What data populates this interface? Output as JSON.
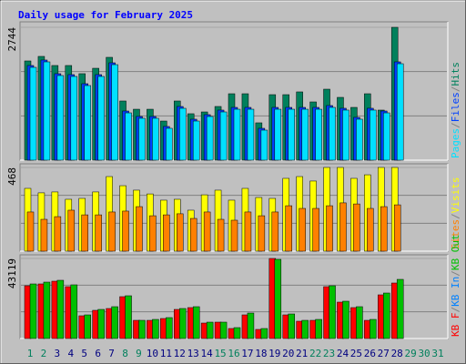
{
  "chart_data": [
    {
      "type": "bar",
      "title": "Daily usage for February 2025",
      "ylim": [
        0,
        2744
      ],
      "yticks": [
        2744
      ],
      "grid_divisions": 3,
      "draw_reverse": true,
      "legend_separator": "/",
      "series": [
        {
          "name": "Pages",
          "color": "#00e0ff",
          "values": [
            1917,
            2030,
            1748,
            1729,
            1541,
            1729,
            1973,
            977,
            865,
            865,
            658,
            1071,
            808,
            902,
            996,
            1052,
            1052,
            620,
            1052,
            1052,
            1052,
            1052,
            1090,
            1034,
            846,
            1034,
            977,
            1992,
            null,
            null,
            null
          ]
        },
        {
          "name": "Files",
          "color": "#0040ff",
          "values": [
            1955,
            2068,
            1786,
            1767,
            1579,
            1767,
            2011,
            1015,
            903,
            903,
            696,
            1109,
            846,
            940,
            1034,
            1090,
            1090,
            658,
            1090,
            1090,
            1090,
            1090,
            1128,
            1072,
            884,
            1072,
            1015,
            2030,
            null,
            null,
            null
          ]
        },
        {
          "name": "Hits",
          "color": "#00805c",
          "values": [
            2049,
            2143,
            1955,
            1955,
            1786,
            1898,
            2124,
            1222,
            1052,
            1052,
            808,
            1222,
            959,
            996,
            1109,
            1372,
            1372,
            771,
            1353,
            1353,
            1410,
            1203,
            1466,
            1297,
            1090,
            1372,
            1034,
            2744,
            null,
            null,
            null
          ]
        }
      ]
    },
    {
      "type": "bar",
      "ylim": [
        0,
        468
      ],
      "yticks": [
        468
      ],
      "grid_divisions": 3,
      "draw_reverse": true,
      "legend_separator": "/",
      "series": [
        {
          "name": "Sites",
          "color": "#ff8000",
          "values": [
            219,
            178,
            193,
            229,
            203,
            203,
            219,
            224,
            249,
            198,
            203,
            209,
            183,
            219,
            178,
            173,
            219,
            198,
            219,
            254,
            239,
            239,
            254,
            270,
            264,
            239,
            249,
            259,
            null,
            null,
            null
          ]
        },
        {
          "name": "Visits",
          "color": "#ffff00",
          "values": [
            351,
            326,
            331,
            290,
            295,
            331,
            417,
            366,
            341,
            320,
            285,
            290,
            229,
            315,
            341,
            285,
            351,
            300,
            295,
            407,
            417,
            392,
            468,
            468,
            407,
            427,
            468,
            468,
            null,
            null,
            null
          ]
        }
      ]
    },
    {
      "type": "bar",
      "ylim": [
        0,
        43119
      ],
      "yticks": [
        43119
      ],
      "grid_divisions": 3,
      "draw_reverse": false,
      "legend_separator": "/",
      "categories": [
        "1",
        "2",
        "3",
        "4",
        "5",
        "6",
        "7",
        "8",
        "9",
        "10",
        "11",
        "12",
        "13",
        "14",
        "15",
        "16",
        "17",
        "18",
        "19",
        "20",
        "21",
        "22",
        "23",
        "24",
        "25",
        "26",
        "27",
        "28",
        "29",
        "30",
        "31"
      ],
      "category_colors": [
        "#00805c",
        "#00805c",
        "#000080",
        "#000080",
        "#000080",
        "#000080",
        "#000080",
        "#00805c",
        "#00805c",
        "#000080",
        "#000080",
        "#000080",
        "#000080",
        "#000080",
        "#00805c",
        "#00805c",
        "#000080",
        "#000080",
        "#000080",
        "#000080",
        "#000080",
        "#00805c",
        "#00805c",
        "#000080",
        "#000080",
        "#000080",
        "#000080",
        "#000080",
        "#00805c",
        "#00805c",
        "#00805c"
      ],
      "series": [
        {
          "name": "KB F",
          "color": "#ff0000",
          "values": [
            28420,
            29400,
            30870,
            27930,
            12250,
            15190,
            16170,
            22540,
            9800,
            9800,
            10780,
            15680,
            16660,
            8330,
            8820,
            5390,
            12740,
            4900,
            43119,
            12740,
            9310,
            9800,
            27930,
            19600,
            16660,
            9800,
            23520,
            29890,
            null,
            null,
            null
          ]
        },
        {
          "name": "KB In",
          "color": "#0080ff",
          "values": [
            0,
            0,
            0,
            0,
            0,
            0,
            0,
            0,
            0,
            0,
            0,
            0,
            0,
            0,
            0,
            0,
            0,
            0,
            0,
            0,
            0,
            0,
            0,
            0,
            0,
            0,
            0,
            0,
            null,
            null,
            null
          ]
        },
        {
          "name": "KB Out",
          "color": "#00c000",
          "values": [
            29400,
            30380,
            31360,
            28910,
            12740,
            15680,
            17150,
            23030,
            9800,
            10290,
            11270,
            16170,
            17150,
            8820,
            8820,
            5880,
            13720,
            5390,
            42630,
            13230,
            9800,
            10290,
            28420,
            20090,
            17150,
            10290,
            24500,
            31850,
            null,
            null,
            null
          ]
        }
      ]
    }
  ]
}
